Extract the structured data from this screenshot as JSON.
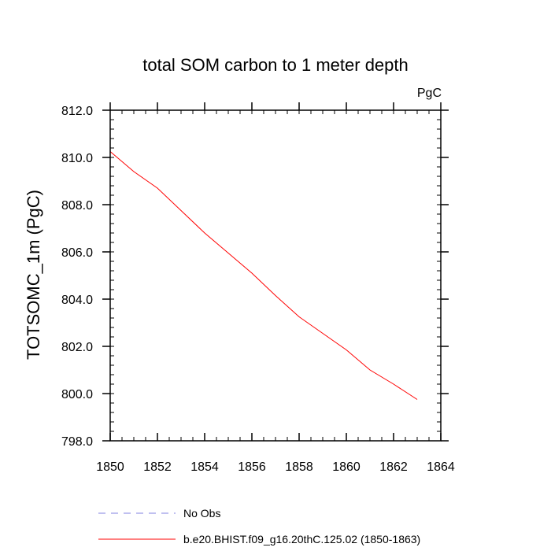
{
  "chart_data": {
    "type": "line",
    "title": "total SOM carbon to 1 meter depth",
    "units": "PgC",
    "ylabel": "TOTSOMC_1m  (PgC)",
    "xlabel": "",
    "xlim": [
      1850,
      1864
    ],
    "ylim": [
      798.0,
      812.0
    ],
    "xticks": [
      1850,
      1852,
      1854,
      1856,
      1858,
      1860,
      1862,
      1864
    ],
    "xtick_labels": [
      "1850",
      "1852",
      "1854",
      "1856",
      "1858",
      "1860",
      "1862",
      "1864"
    ],
    "yticks": [
      798.0,
      800.0,
      802.0,
      804.0,
      806.0,
      808.0,
      810.0,
      812.0
    ],
    "ytick_labels": [
      "798.0",
      "800.0",
      "802.0",
      "804.0",
      "806.0",
      "808.0",
      "810.0",
      "812.0"
    ],
    "series": [
      {
        "name": "b.e20.BHIST.f09_g16.20thC.125.02 (1850-1863)",
        "color": "#ff0000",
        "style": "solid",
        "x": [
          1850,
          1851,
          1852,
          1853,
          1854,
          1855,
          1856,
          1857,
          1858,
          1859,
          1860,
          1861,
          1862,
          1863
        ],
        "values": [
          810.25,
          809.4,
          808.7,
          807.75,
          806.8,
          805.95,
          805.1,
          804.15,
          803.25,
          802.55,
          801.85,
          801.0,
          800.4,
          799.75
        ]
      },
      {
        "name": "No Obs",
        "color": "#8080e0",
        "style": "dashed",
        "x": [],
        "values": []
      }
    ],
    "legend": {
      "placement": "bottom-left",
      "entries": [
        "No Obs",
        "b.e20.BHIST.f09_g16.20thC.125.02 (1850-1863)"
      ]
    }
  }
}
